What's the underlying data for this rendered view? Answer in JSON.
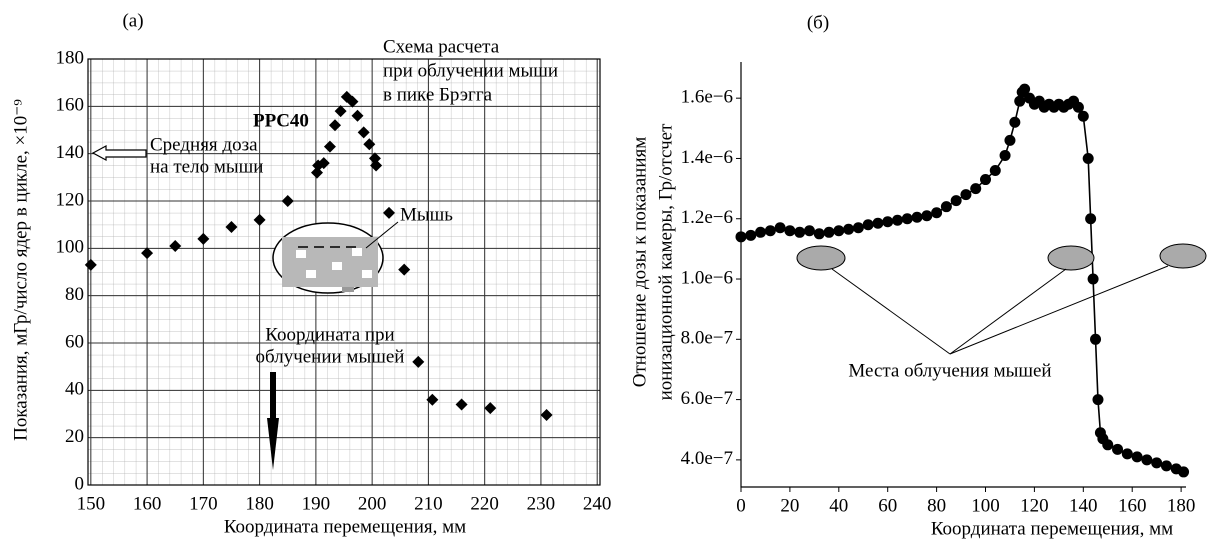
{
  "chart_data": [
    {
      "type": "scatter",
      "title": "(a)",
      "xlabel": "Координата перемещения, мм",
      "ylabel": "Показания, мГр/число ядер в цикле, ×10⁻⁹",
      "x": [
        150,
        160,
        165,
        170,
        175,
        180,
        185,
        190.2,
        190.4,
        191.4,
        192.5,
        193.4,
        194.4,
        195.5,
        196.5,
        197.4,
        198.5,
        199.5,
        200.5,
        200.7,
        203,
        205.7,
        208.2,
        210.7,
        215.9,
        221,
        231
      ],
      "values": [
        93,
        98,
        101,
        104,
        109,
        112,
        120,
        132,
        135,
        136,
        143,
        152,
        158,
        164,
        162,
        156,
        149,
        144,
        138,
        135,
        115,
        91,
        52,
        36,
        34,
        32.5,
        29.6
      ],
      "color": "#000000",
      "marker": "diamond",
      "xlim": [
        149.5,
        240.5
      ],
      "xticks": [
        150,
        160,
        170,
        180,
        190,
        200,
        210,
        220,
        230,
        240
      ],
      "ylim": [
        0,
        180
      ],
      "yticks": [
        0,
        20,
        40,
        60,
        80,
        100,
        120,
        140,
        160,
        180
      ],
      "grid": true,
      "minor_grid": true,
      "annotations": [
        [
          "Схема расчета",
          "при облучении мыши",
          "в пике Брэгга"
        ],
        [
          "PPC40"
        ],
        [
          "Средняя доза",
          "на тело мыши"
        ],
        [
          "Мышь"
        ],
        [
          "Координата при",
          "облучении мышей"
        ]
      ]
    },
    {
      "type": "line",
      "title": "(б)",
      "xlabel": "Координата перемещения, мм",
      "ylabel": [
        "Отношение дозы к показаниям",
        "ионизационной камеры, Гр/отсчет"
      ],
      "x": [
        0,
        4,
        8,
        12,
        16,
        20,
        24,
        28,
        32,
        36,
        40,
        44,
        48,
        52,
        56,
        60,
        64,
        68,
        72,
        76,
        80,
        84,
        88,
        92,
        96,
        100,
        104,
        108,
        110,
        112,
        114,
        115,
        116,
        118,
        120,
        122,
        124,
        126,
        128,
        130,
        132,
        134,
        136,
        138,
        140,
        142,
        143,
        144,
        145,
        146,
        147,
        148,
        150,
        154,
        158,
        162,
        166,
        170,
        174,
        178,
        181
      ],
      "values": [
        1.14e-06,
        1.145e-06,
        1.155e-06,
        1.16e-06,
        1.17e-06,
        1.16e-06,
        1.155e-06,
        1.16e-06,
        1.15e-06,
        1.155e-06,
        1.16e-06,
        1.165e-06,
        1.17e-06,
        1.18e-06,
        1.185e-06,
        1.19e-06,
        1.195e-06,
        1.2e-06,
        1.205e-06,
        1.21e-06,
        1.22e-06,
        1.24e-06,
        1.26e-06,
        1.28e-06,
        1.3e-06,
        1.33e-06,
        1.36e-06,
        1.41e-06,
        1.46e-06,
        1.52e-06,
        1.59e-06,
        1.62e-06,
        1.63e-06,
        1.6e-06,
        1.58e-06,
        1.59e-06,
        1.57e-06,
        1.58e-06,
        1.57e-06,
        1.58e-06,
        1.57e-06,
        1.58e-06,
        1.59e-06,
        1.57e-06,
        1.54e-06,
        1.4e-06,
        1.2e-06,
        1e-06,
        8e-07,
        6e-07,
        4.9e-07,
        4.7e-07,
        4.5e-07,
        4.35e-07,
        4.2e-07,
        4.1e-07,
        4e-07,
        3.9e-07,
        3.8e-07,
        3.7e-07,
        3.6e-07
      ],
      "color": "#000000",
      "marker": "circle",
      "xlim": [
        0,
        182
      ],
      "xticks": [
        0,
        20,
        40,
        60,
        80,
        100,
        120,
        140,
        160,
        180
      ],
      "ylim": [
        3.1e-07,
        1.72e-06
      ],
      "yticks": [
        {
          "value": 4e-07,
          "label": "4.0e−7"
        },
        {
          "value": 6e-07,
          "label": "6.0e−7"
        },
        {
          "value": 8e-07,
          "label": "8.0e−7"
        },
        {
          "value": 1e-06,
          "label": "1.0e−6"
        },
        {
          "value": 1.2e-06,
          "label": "1.2e−6"
        },
        {
          "value": 1.4e-06,
          "label": "1.4e−6"
        },
        {
          "value": 1.6e-06,
          "label": "1.6e−6"
        }
      ],
      "grid": false,
      "minor_grid": false,
      "annotations": [
        [
          "Места облучения мышей"
        ]
      ]
    }
  ]
}
